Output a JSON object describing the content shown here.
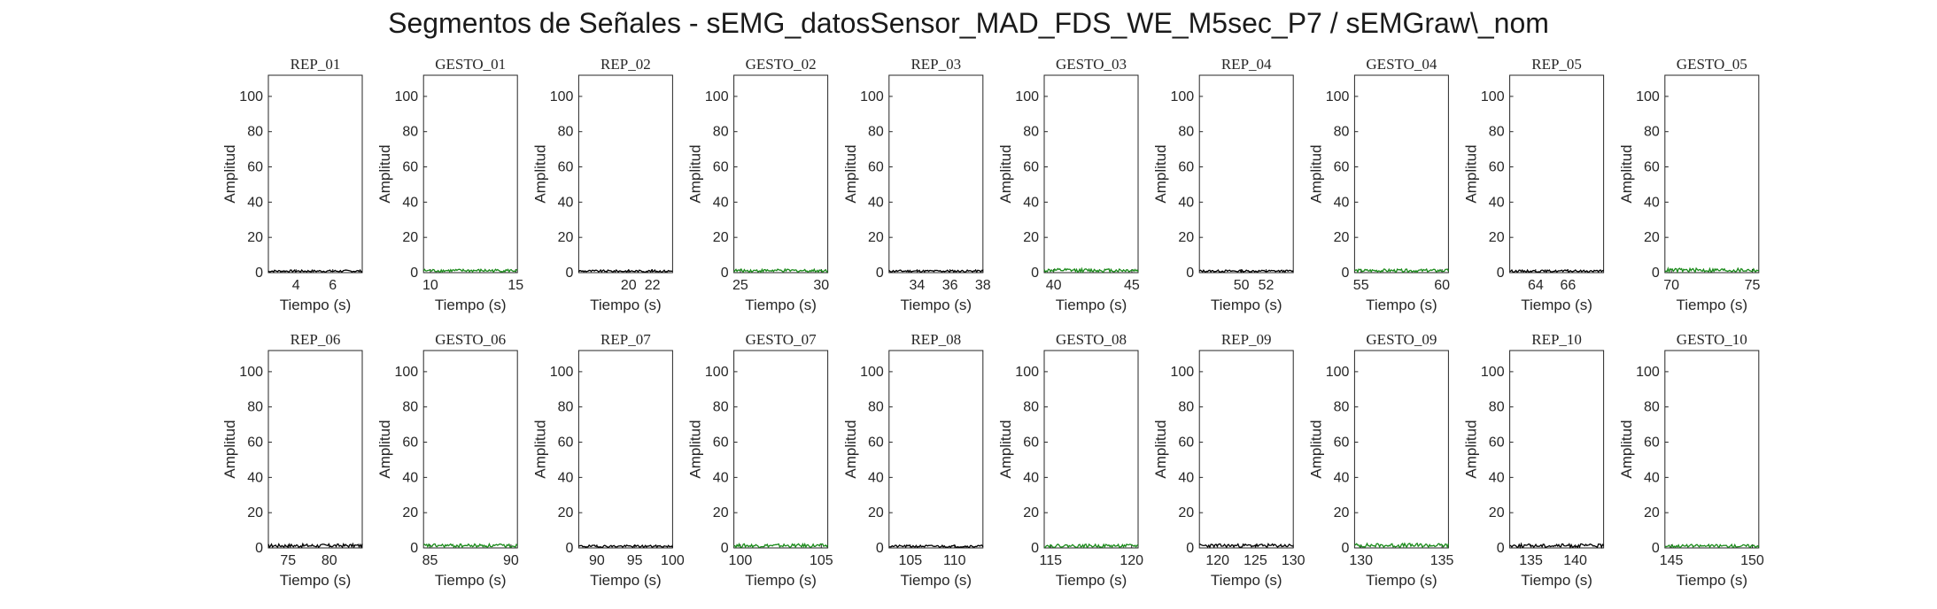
{
  "figure": {
    "title": "Segmentos de Señales - sEMG_datosSensor_MAD_FDS_WE_M5sec_P7 / sEMGraw\\_nom"
  },
  "colors": {
    "rep": "#000000",
    "gesto": "#1a8a1a",
    "axis": "#262626"
  },
  "chart_data": [
    {
      "type": "line",
      "title": "REP_01",
      "xlabel": "Tiempo (s)",
      "ylabel": "Amplitud",
      "xlim": [
        2.5,
        7.6
      ],
      "ylim": [
        0,
        112
      ],
      "xticks": [
        4,
        6
      ],
      "yticks": [
        0,
        20,
        40,
        60,
        80,
        100
      ],
      "series": [
        {
          "name": "",
          "kind": "rep",
          "amplitude": 1.2
        }
      ]
    },
    {
      "type": "line",
      "title": "GESTO_01",
      "xlabel": "Tiempo (s)",
      "ylabel": "Amplitud",
      "xlim": [
        9.6,
        15.1
      ],
      "ylim": [
        0,
        112
      ],
      "xticks": [
        10,
        15
      ],
      "yticks": [
        0,
        20,
        40,
        60,
        80,
        100
      ],
      "series": [
        {
          "name": "",
          "kind": "gesto",
          "amplitude": 1.7
        }
      ]
    },
    {
      "type": "line",
      "title": "REP_02",
      "xlabel": "Tiempo (s)",
      "ylabel": "Amplitud",
      "xlim": [
        15.8,
        23.7
      ],
      "ylim": [
        0,
        112
      ],
      "xticks": [
        20,
        22
      ],
      "yticks": [
        0,
        20,
        40,
        60,
        80,
        100
      ],
      "series": [
        {
          "name": "",
          "kind": "rep",
          "amplitude": 1.2
        }
      ]
    },
    {
      "type": "line",
      "title": "GESTO_02",
      "xlabel": "Tiempo (s)",
      "ylabel": "Amplitud",
      "xlim": [
        24.6,
        30.4
      ],
      "ylim": [
        0,
        112
      ],
      "xticks": [
        25,
        30
      ],
      "yticks": [
        0,
        20,
        40,
        60,
        80,
        100
      ],
      "series": [
        {
          "name": "",
          "kind": "gesto",
          "amplitude": 1.7
        }
      ]
    },
    {
      "type": "line",
      "title": "REP_03",
      "xlabel": "Tiempo (s)",
      "ylabel": "Amplitud",
      "xlim": [
        32.3,
        38.0
      ],
      "ylim": [
        0,
        112
      ],
      "xticks": [
        34,
        36,
        38
      ],
      "yticks": [
        0,
        20,
        40,
        60,
        80,
        100
      ],
      "series": [
        {
          "name": "",
          "kind": "rep",
          "amplitude": 1.2
        }
      ]
    },
    {
      "type": "line",
      "title": "GESTO_03",
      "xlabel": "Tiempo (s)",
      "ylabel": "Amplitud",
      "xlim": [
        39.4,
        45.4
      ],
      "ylim": [
        0,
        112
      ],
      "xticks": [
        40,
        45
      ],
      "yticks": [
        0,
        20,
        40,
        60,
        80,
        100
      ],
      "series": [
        {
          "name": "",
          "kind": "gesto",
          "amplitude": 2.0
        }
      ]
    },
    {
      "type": "line",
      "title": "REP_04",
      "xlabel": "Tiempo (s)",
      "ylabel": "Amplitud",
      "xlim": [
        46.6,
        54.2
      ],
      "ylim": [
        0,
        112
      ],
      "xticks": [
        50,
        52
      ],
      "yticks": [
        0,
        20,
        40,
        60,
        80,
        100
      ],
      "series": [
        {
          "name": "",
          "kind": "rep",
          "amplitude": 1.2
        }
      ]
    },
    {
      "type": "line",
      "title": "GESTO_04",
      "xlabel": "Tiempo (s)",
      "ylabel": "Amplitud",
      "xlim": [
        54.6,
        60.4
      ],
      "ylim": [
        0,
        112
      ],
      "xticks": [
        55,
        60
      ],
      "yticks": [
        0,
        20,
        40,
        60,
        80,
        100
      ],
      "series": [
        {
          "name": "",
          "kind": "gesto",
          "amplitude": 1.7
        }
      ]
    },
    {
      "type": "line",
      "title": "REP_05",
      "xlabel": "Tiempo (s)",
      "ylabel": "Amplitud",
      "xlim": [
        62.4,
        68.2
      ],
      "ylim": [
        0,
        112
      ],
      "xticks": [
        64,
        66
      ],
      "yticks": [
        0,
        20,
        40,
        60,
        80,
        100
      ],
      "series": [
        {
          "name": "",
          "kind": "rep",
          "amplitude": 1.2
        }
      ]
    },
    {
      "type": "line",
      "title": "GESTO_05",
      "xlabel": "Tiempo (s)",
      "ylabel": "Amplitud",
      "xlim": [
        69.6,
        75.4
      ],
      "ylim": [
        0,
        112
      ],
      "xticks": [
        70,
        75
      ],
      "yticks": [
        0,
        20,
        40,
        60,
        80,
        100
      ],
      "series": [
        {
          "name": "",
          "kind": "gesto",
          "amplitude": 2.2
        }
      ]
    },
    {
      "type": "line",
      "title": "REP_06",
      "xlabel": "Tiempo (s)",
      "ylabel": "Amplitud",
      "xlim": [
        72.6,
        84.0
      ],
      "ylim": [
        0,
        112
      ],
      "xticks": [
        75,
        80
      ],
      "yticks": [
        0,
        20,
        40,
        60,
        80,
        100
      ],
      "series": [
        {
          "name": "",
          "kind": "rep",
          "amplitude": 2.0
        }
      ]
    },
    {
      "type": "line",
      "title": "GESTO_06",
      "xlabel": "Tiempo (s)",
      "ylabel": "Amplitud",
      "xlim": [
        84.6,
        90.4
      ],
      "ylim": [
        0,
        112
      ],
      "xticks": [
        85,
        90
      ],
      "yticks": [
        0,
        20,
        40,
        60,
        80,
        100
      ],
      "series": [
        {
          "name": "",
          "kind": "gesto",
          "amplitude": 2.0
        }
      ]
    },
    {
      "type": "line",
      "title": "REP_07",
      "xlabel": "Tiempo (s)",
      "ylabel": "Amplitud",
      "xlim": [
        87.6,
        100.0
      ],
      "ylim": [
        0,
        112
      ],
      "xticks": [
        90,
        95,
        100
      ],
      "yticks": [
        0,
        20,
        40,
        60,
        80,
        100
      ],
      "series": [
        {
          "name": "",
          "kind": "rep",
          "amplitude": 1.3
        }
      ]
    },
    {
      "type": "line",
      "title": "GESTO_07",
      "xlabel": "Tiempo (s)",
      "ylabel": "Amplitud",
      "xlim": [
        99.6,
        105.4
      ],
      "ylim": [
        0,
        112
      ],
      "xticks": [
        100,
        105
      ],
      "yticks": [
        0,
        20,
        40,
        60,
        80,
        100
      ],
      "series": [
        {
          "name": "",
          "kind": "gesto",
          "amplitude": 2.0
        }
      ]
    },
    {
      "type": "line",
      "title": "REP_08",
      "xlabel": "Tiempo (s)",
      "ylabel": "Amplitud",
      "xlim": [
        102.6,
        113.2
      ],
      "ylim": [
        0,
        112
      ],
      "xticks": [
        105,
        110
      ],
      "yticks": [
        0,
        20,
        40,
        60,
        80,
        100
      ],
      "series": [
        {
          "name": "",
          "kind": "rep",
          "amplitude": 1.3
        }
      ]
    },
    {
      "type": "line",
      "title": "GESTO_08",
      "xlabel": "Tiempo (s)",
      "ylabel": "Amplitud",
      "xlim": [
        114.6,
        120.4
      ],
      "ylim": [
        0,
        112
      ],
      "xticks": [
        115,
        120
      ],
      "yticks": [
        0,
        20,
        40,
        60,
        80,
        100
      ],
      "series": [
        {
          "name": "",
          "kind": "gesto",
          "amplitude": 1.8
        }
      ]
    },
    {
      "type": "line",
      "title": "REP_09",
      "xlabel": "Tiempo (s)",
      "ylabel": "Amplitud",
      "xlim": [
        117.6,
        130.0
      ],
      "ylim": [
        0,
        112
      ],
      "xticks": [
        120,
        125,
        130
      ],
      "yticks": [
        0,
        20,
        40,
        60,
        80,
        100
      ],
      "series": [
        {
          "name": "",
          "kind": "rep",
          "amplitude": 2.0
        }
      ]
    },
    {
      "type": "line",
      "title": "GESTO_09",
      "xlabel": "Tiempo (s)",
      "ylabel": "Amplitud",
      "xlim": [
        129.6,
        135.4
      ],
      "ylim": [
        0,
        112
      ],
      "xticks": [
        130,
        135
      ],
      "yticks": [
        0,
        20,
        40,
        60,
        80,
        100
      ],
      "series": [
        {
          "name": "",
          "kind": "gesto",
          "amplitude": 2.3
        }
      ]
    },
    {
      "type": "line",
      "title": "REP_10",
      "xlabel": "Tiempo (s)",
      "ylabel": "Amplitud",
      "xlim": [
        132.6,
        143.2
      ],
      "ylim": [
        0,
        112
      ],
      "xticks": [
        135,
        140
      ],
      "yticks": [
        0,
        20,
        40,
        60,
        80,
        100
      ],
      "series": [
        {
          "name": "",
          "kind": "rep",
          "amplitude": 2.0
        }
      ]
    },
    {
      "type": "line",
      "title": "GESTO_10",
      "xlabel": "Tiempo (s)",
      "ylabel": "Amplitud",
      "xlim": [
        144.6,
        150.4
      ],
      "ylim": [
        0,
        112
      ],
      "xticks": [
        145,
        150
      ],
      "yticks": [
        0,
        20,
        40,
        60,
        80,
        100
      ],
      "series": [
        {
          "name": "",
          "kind": "gesto",
          "amplitude": 1.7
        }
      ]
    }
  ]
}
